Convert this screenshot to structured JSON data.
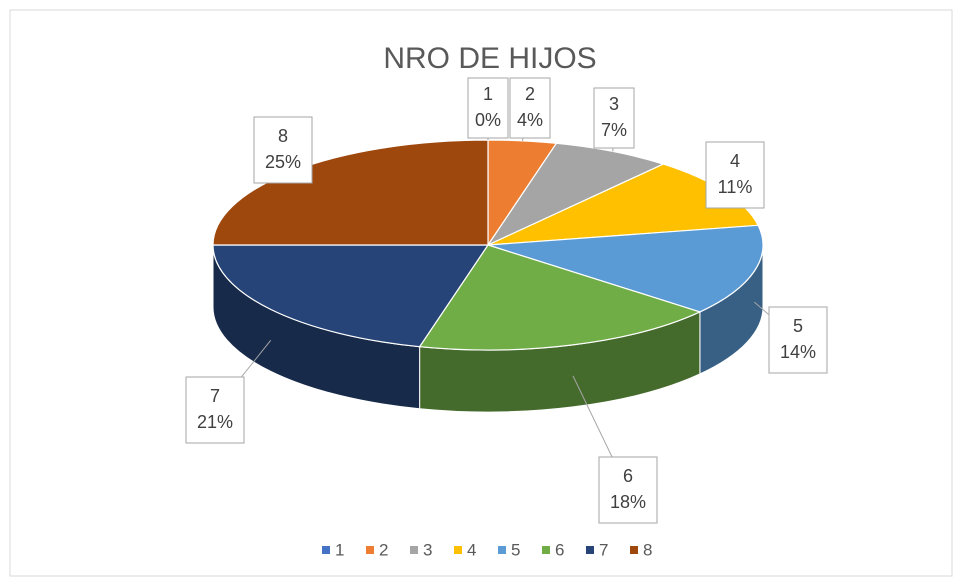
{
  "chart_data": {
    "type": "pie",
    "title": "NRO DE HIJOS",
    "categories": [
      "1",
      "2",
      "3",
      "4",
      "5",
      "6",
      "7",
      "8"
    ],
    "values": [
      0,
      4,
      7,
      11,
      14,
      18,
      21,
      25
    ],
    "value_labels": [
      "0%",
      "4%",
      "7%",
      "11%",
      "14%",
      "18%",
      "21%",
      "25%"
    ],
    "colors": [
      "#4472c4",
      "#ed7d31",
      "#a5a5a5",
      "#ffc000",
      "#5b9bd5",
      "#70ad47",
      "#264478",
      "#9e480e"
    ],
    "legend": "bottom"
  }
}
